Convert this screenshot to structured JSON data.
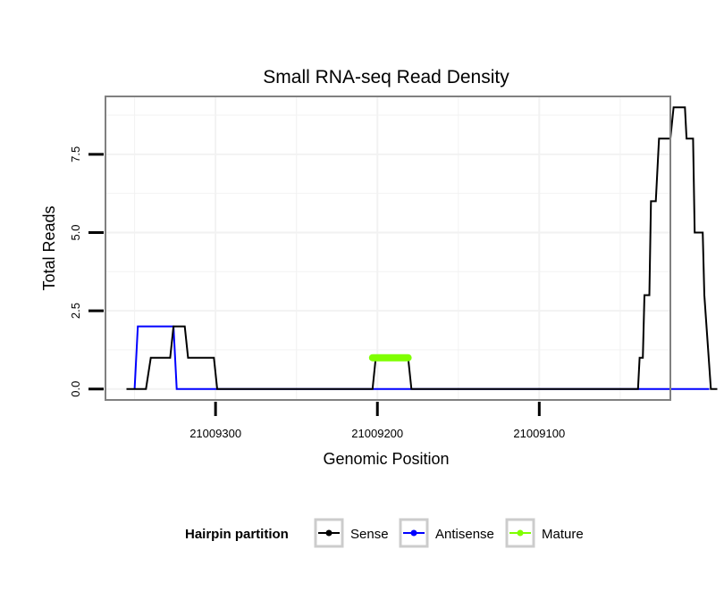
{
  "chart_data": {
    "type": "line",
    "title": "Small RNA-seq Read Density",
    "xlabel": "Genomic Position",
    "ylabel": "Total Reads",
    "x_reversed": true,
    "xlim": [
      21009368,
      21009019
    ],
    "ylim": [
      -0.35,
      9.35
    ],
    "x_ticks": [
      21009300,
      21009200,
      21009100
    ],
    "x_tick_labels": [
      "21009300",
      "21009200",
      "21009100"
    ],
    "y_ticks": [
      0,
      2.5,
      5,
      7.5
    ],
    "y_tick_labels": [
      "0.0",
      "2.5",
      "5.0",
      "7.5"
    ],
    "grid": true,
    "legend_position": "bottom",
    "legend": {
      "title": "Hairpin partition",
      "entries": [
        "Sense",
        "Antisense",
        "Mature"
      ]
    },
    "colors": {
      "Sense": "#000000",
      "Antisense": "#0000ff",
      "Mature": "#7fff00"
    },
    "series": [
      {
        "name": "Sense",
        "x": [
          21009355,
          21009343,
          21009340,
          21009334,
          21009332,
          21009328,
          21009326,
          21009319,
          21009317,
          21009301,
          21009299,
          21009203,
          21009201,
          21009181,
          21009179,
          21009039,
          21009038,
          21009036,
          21009035,
          21009032,
          21009031,
          21009028,
          21009026,
          21009019,
          21009017,
          21009016,
          21009014,
          21009010,
          21009009,
          21009005,
          21009004,
          21008999,
          21008998,
          21008994,
          21008990
        ],
        "y": [
          0,
          0,
          1,
          1,
          1,
          1,
          2,
          2,
          1,
          1,
          0,
          0,
          1,
          1,
          0,
          0,
          1,
          1,
          3,
          3,
          6,
          6,
          8,
          8,
          9,
          9,
          9,
          9,
          8,
          8,
          5,
          5,
          3,
          0,
          0
        ]
      },
      {
        "name": "Antisense",
        "x": [
          21009350,
          21009348,
          21009326,
          21009324,
          21009300,
          21009179,
          21008995
        ],
        "y": [
          0,
          2,
          2,
          0,
          0,
          0,
          0
        ]
      },
      {
        "name": "Mature",
        "x": [
          21009203,
          21009181
        ],
        "y": [
          1,
          1
        ]
      }
    ]
  }
}
